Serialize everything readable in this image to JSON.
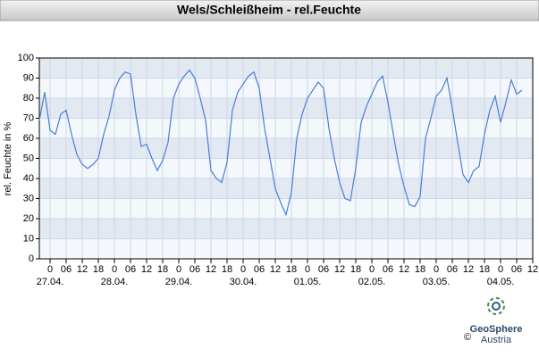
{
  "chart_data": {
    "type": "line",
    "title": "Wels/Schleißheim - rel.Feuchte",
    "y_label": "rel. Feuchte in %",
    "x": [
      -4,
      -2,
      0,
      2,
      4,
      6,
      8,
      10,
      12,
      14,
      16,
      18,
      20,
      22,
      24,
      26,
      28,
      30,
      32,
      34,
      36,
      38,
      40,
      42,
      44,
      46,
      48,
      50,
      52,
      54,
      56,
      58,
      60,
      62,
      64,
      66,
      68,
      70,
      72,
      74,
      76,
      78,
      80,
      82,
      84,
      86,
      88,
      90,
      92,
      94,
      96,
      98,
      100,
      102,
      104,
      106,
      108,
      110,
      112,
      114,
      116,
      118,
      120,
      122,
      124,
      126,
      128,
      130,
      132,
      134,
      136,
      138,
      140,
      142,
      144,
      146,
      148,
      150,
      152,
      154,
      156,
      158,
      160,
      162,
      164,
      166,
      168,
      170,
      172,
      174,
      176
    ],
    "values": [
      69,
      83,
      64,
      62,
      72,
      74,
      62,
      52,
      47,
      45,
      47,
      50,
      62,
      71,
      84,
      90,
      93,
      92,
      72,
      56,
      57,
      50,
      44,
      49,
      58,
      80,
      87,
      91,
      94,
      90,
      80,
      69,
      44,
      40,
      38,
      48,
      74,
      83,
      87,
      91,
      93,
      85,
      65,
      50,
      35,
      28,
      22,
      33,
      60,
      72,
      80,
      84,
      88,
      85,
      65,
      50,
      38,
      30,
      29,
      45,
      68,
      76,
      82,
      88,
      91,
      78,
      62,
      47,
      36,
      27,
      26,
      31,
      60,
      70,
      81,
      84,
      90,
      75,
      58,
      42,
      38,
      44,
      46,
      62,
      74,
      81,
      68,
      78,
      89,
      82,
      84
    ],
    "color": "#4a7fd4",
    "xlim": [
      -4,
      180
    ],
    "xticks": [
      {
        "value": 0,
        "label": "0"
      },
      {
        "value": 6,
        "label": "06"
      },
      {
        "value": 12,
        "label": "12"
      },
      {
        "value": 18,
        "label": "18"
      },
      {
        "value": 24,
        "label": "0"
      },
      {
        "value": 30,
        "label": "06"
      },
      {
        "value": 36,
        "label": "12"
      },
      {
        "value": 42,
        "label": "18"
      },
      {
        "value": 48,
        "label": "0"
      },
      {
        "value": 54,
        "label": "06"
      },
      {
        "value": 60,
        "label": "12"
      },
      {
        "value": 66,
        "label": "18"
      },
      {
        "value": 72,
        "label": "0"
      },
      {
        "value": 78,
        "label": "06"
      },
      {
        "value": 84,
        "label": "12"
      },
      {
        "value": 90,
        "label": "18"
      },
      {
        "value": 96,
        "label": "0"
      },
      {
        "value": 102,
        "label": "06"
      },
      {
        "value": 108,
        "label": "12"
      },
      {
        "value": 114,
        "label": "18"
      },
      {
        "value": 120,
        "label": "0"
      },
      {
        "value": 126,
        "label": "06"
      },
      {
        "value": 132,
        "label": "12"
      },
      {
        "value": 138,
        "label": "18"
      },
      {
        "value": 144,
        "label": "0"
      },
      {
        "value": 150,
        "label": "06"
      },
      {
        "value": 156,
        "label": "12"
      },
      {
        "value": 162,
        "label": "18"
      },
      {
        "value": 168,
        "label": "0"
      },
      {
        "value": 174,
        "label": "06"
      },
      {
        "value": 180,
        "label": "12"
      }
    ],
    "day_labels": [
      {
        "value": 0,
        "label": "27.04."
      },
      {
        "value": 24,
        "label": "28.04."
      },
      {
        "value": 48,
        "label": "29.04."
      },
      {
        "value": 72,
        "label": "30.04."
      },
      {
        "value": 96,
        "label": "01.05."
      },
      {
        "value": 120,
        "label": "02.05."
      },
      {
        "value": 144,
        "label": "03.05."
      },
      {
        "value": 168,
        "label": "04.05."
      }
    ],
    "ylim": [
      0,
      100
    ],
    "yticks": [
      0,
      10,
      20,
      30,
      40,
      50,
      60,
      70,
      80,
      90,
      100
    ],
    "grid": true
  },
  "footer": {
    "copyright": "©",
    "brand": "GeoSphere",
    "country": "Austria"
  }
}
